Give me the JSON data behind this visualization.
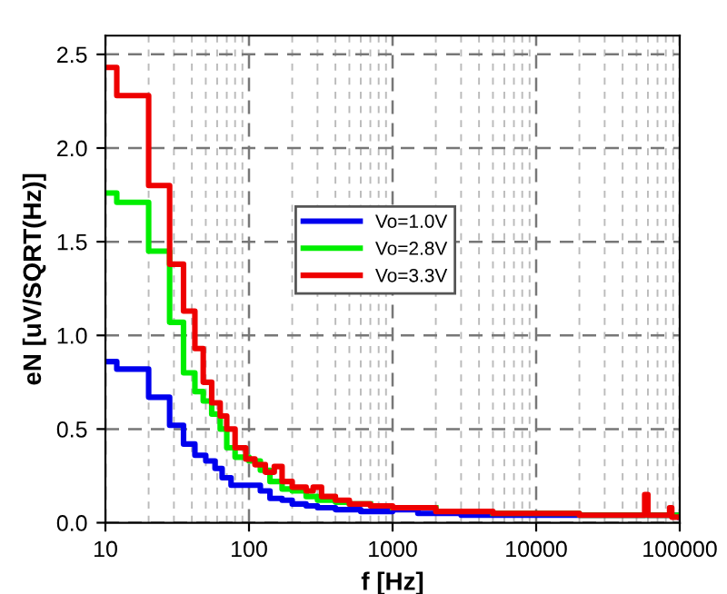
{
  "chart_data": {
    "type": "step",
    "xlabel": "f [Hz]",
    "ylabel": "eN [uV/SQRT(Hz)]",
    "log": "x",
    "xlim": [
      10,
      100000
    ],
    "ylim": [
      0,
      2.6
    ],
    "xticks": [
      10,
      100,
      1000,
      10000,
      100000
    ],
    "yticks": [
      {
        "value": 0,
        "label": "0.0"
      },
      {
        "value": 0.5,
        "label": "0.5"
      },
      {
        "value": 1,
        "label": "1.0"
      },
      {
        "value": 1.5,
        "label": "1.5"
      },
      {
        "value": 2,
        "label": "2.0"
      },
      {
        "value": 2.5,
        "label": "2.5"
      }
    ],
    "grid": true,
    "legend": "center",
    "line_style": "solid",
    "series": [
      {
        "name": "Vo=1.0V",
        "color": "#0000ee",
        "x": [
          10,
          12,
          20,
          28,
          35,
          42,
          50,
          58,
          65,
          75,
          100,
          120,
          140,
          170,
          200,
          250,
          300,
          400,
          600,
          1000,
          1500,
          3000,
          100000
        ],
        "values": [
          0.86,
          0.82,
          0.67,
          0.52,
          0.42,
          0.36,
          0.33,
          0.29,
          0.24,
          0.2,
          0.2,
          0.17,
          0.13,
          0.12,
          0.1,
          0.09,
          0.08,
          0.07,
          0.06,
          0.07,
          0.05,
          0.04,
          0.03
        ]
      },
      {
        "name": "Vo=2.8V",
        "color": "#00ee00",
        "x": [
          10,
          12,
          20,
          28,
          35,
          42,
          48,
          55,
          63,
          70,
          80,
          100,
          120,
          140,
          170,
          200,
          250,
          300,
          400,
          500,
          700,
          1000,
          2000,
          5000,
          20000,
          100000
        ],
        "values": [
          1.76,
          1.71,
          1.45,
          1.07,
          0.8,
          0.7,
          0.65,
          0.58,
          0.5,
          0.4,
          0.35,
          0.33,
          0.28,
          0.22,
          0.18,
          0.17,
          0.14,
          0.12,
          0.11,
          0.1,
          null,
          0.08,
          null,
          0.05,
          0.04,
          0.04
        ]
      },
      {
        "name": "Vo=3.3V",
        "color": "#ee0000",
        "x": [
          10,
          12,
          20,
          28,
          35,
          42,
          48,
          55,
          63,
          70,
          80,
          95,
          110,
          130,
          150,
          170,
          200,
          250,
          280,
          320,
          400,
          500,
          700,
          1000,
          2000,
          5000,
          20000,
          55000,
          57000,
          60000,
          85000,
          88000,
          100000
        ],
        "values": [
          2.43,
          2.28,
          1.8,
          1.38,
          1.13,
          0.93,
          0.75,
          0.64,
          0.57,
          0.5,
          0.4,
          0.34,
          0.31,
          0.27,
          0.3,
          0.22,
          0.19,
          0.17,
          0.19,
          0.14,
          0.12,
          0.1,
          0.09,
          0.08,
          0.06,
          0.05,
          0.04,
          0.04,
          0.15,
          0.04,
          0.08,
          0.03,
          0.03
        ]
      }
    ]
  }
}
